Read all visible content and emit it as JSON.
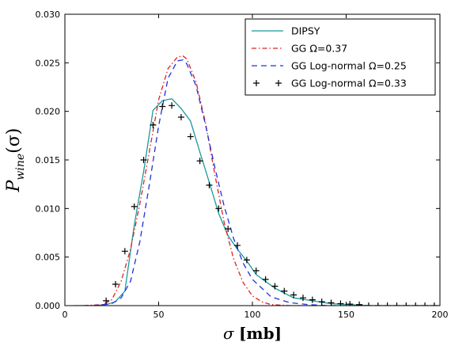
{
  "chart_data": {
    "type": "line",
    "title": "",
    "xlabel": "σ [mb]",
    "ylabel": "P_wine(σ)",
    "ylabel_main": "P",
    "ylabel_sub": "wine",
    "ylabel_arg": "(σ)",
    "xlim": [
      0,
      200
    ],
    "ylim": [
      0,
      0.03
    ],
    "x_ticks": [
      0,
      50,
      100,
      150,
      200
    ],
    "x_tick_labels": [
      "0",
      "50",
      "100",
      "150",
      "200"
    ],
    "y_ticks": [
      0.0,
      0.005,
      0.01,
      0.015,
      0.02,
      0.025,
      0.03
    ],
    "y_tick_labels": [
      "0.000",
      "0.005",
      "0.010",
      "0.015",
      "0.020",
      "0.025",
      "0.030"
    ],
    "grid": false,
    "legend_position": "top-right",
    "series": [
      {
        "name": "DIPSY",
        "style": "solid",
        "color": "#1a9a9a",
        "x": [
          5,
          15,
          22,
          27,
          32,
          37,
          42,
          47,
          52,
          57,
          62,
          67,
          72,
          77,
          82,
          87,
          92,
          97,
          102,
          112,
          122,
          132,
          142,
          152,
          162,
          172,
          182,
          192,
          200
        ],
        "y": [
          0.0,
          0.0,
          0.0001,
          0.0004,
          0.0015,
          0.0083,
          0.0138,
          0.0201,
          0.0211,
          0.0213,
          0.0203,
          0.019,
          0.0158,
          0.0127,
          0.0095,
          0.0072,
          0.0058,
          0.0046,
          0.0032,
          0.0018,
          0.0008,
          0.0005,
          0.0002,
          0.0001,
          0.0,
          0.0,
          0.0,
          0.0,
          0.0
        ]
      },
      {
        "name": "GG Ω=0.37",
        "style": "dashdot",
        "color": "#e02020",
        "x": [
          10,
          20,
          25,
          30,
          35,
          40,
          45,
          50,
          55,
          60,
          63,
          65,
          70,
          75,
          80,
          85,
          90,
          95,
          100,
          105,
          110,
          120,
          130
        ],
        "y": [
          0.0,
          0.0001,
          0.0006,
          0.0025,
          0.0058,
          0.0105,
          0.0158,
          0.0212,
          0.0244,
          0.0256,
          0.0257,
          0.0254,
          0.023,
          0.0188,
          0.0135,
          0.0085,
          0.0048,
          0.0024,
          0.001,
          0.0004,
          0.0001,
          0.0,
          0.0
        ]
      },
      {
        "name": "GG Log-normal Ω=0.25",
        "style": "dashed",
        "color": "#2030e0",
        "x": [
          15,
          25,
          30,
          35,
          40,
          45,
          50,
          55,
          60,
          63,
          65,
          70,
          75,
          80,
          85,
          90,
          95,
          100,
          110,
          120,
          130,
          140,
          150
        ],
        "y": [
          0.0,
          0.0002,
          0.0008,
          0.0025,
          0.0066,
          0.0124,
          0.0185,
          0.0234,
          0.0252,
          0.0253,
          0.0249,
          0.0226,
          0.0186,
          0.0142,
          0.0102,
          0.0069,
          0.0044,
          0.0027,
          0.0009,
          0.0003,
          0.0001,
          0.0,
          0.0
        ]
      },
      {
        "name": "GG Log-normal Ω=0.33",
        "style": "markers-plus",
        "color": "#000000",
        "x": [
          22,
          27,
          32,
          37,
          42,
          47,
          52,
          57,
          62,
          67,
          72,
          77,
          82,
          87,
          92,
          97,
          102,
          107,
          112,
          117,
          122,
          127,
          132,
          137,
          142,
          147,
          152,
          157,
          162,
          167,
          172,
          177,
          182,
          187,
          192,
          197
        ],
        "y": [
          0.0005,
          0.0022,
          0.0056,
          0.0102,
          0.015,
          0.0186,
          0.0205,
          0.0206,
          0.0194,
          0.0174,
          0.0149,
          0.0124,
          0.01,
          0.0079,
          0.0062,
          0.0047,
          0.0036,
          0.0027,
          0.002,
          0.0015,
          0.0011,
          0.0008,
          0.0006,
          0.0004,
          0.0003,
          0.0002,
          0.00015,
          0.0001,
          0.0,
          0.0,
          0.0,
          0.0,
          0.0,
          0.0,
          0.0,
          0.0
        ]
      }
    ]
  }
}
